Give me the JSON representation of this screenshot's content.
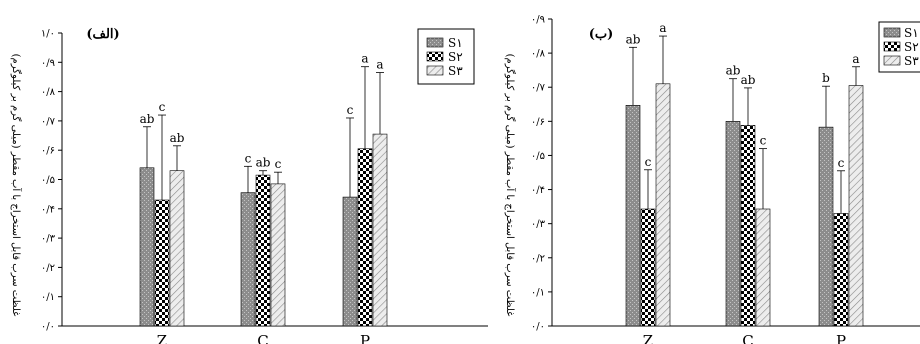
{
  "colors": {
    "s1": "#8c8c8c",
    "s2": "#000000",
    "s3": "#d8d8d8",
    "axis": "#000000"
  },
  "chart_data": [
    {
      "type": "bar",
      "panel_label": "(الف)",
      "ylabel": "غلظت سرب قابل استخراج با آب مقطر (میلی گرم بر کیلوگرم)",
      "ylim": [
        0,
        1.0
      ],
      "yticks": [
        0,
        0.1,
        0.2,
        0.3,
        0.4,
        0.5,
        0.6,
        0.7,
        0.8,
        0.9,
        1.0
      ],
      "ytick_labels": [
        "۰/۰",
        "۰/۱",
        "۰/۲",
        "۰/۳",
        "۰/۴",
        "۰/۵",
        "۰/۶",
        "۰/۷",
        "۰/۸",
        "۰/۹",
        "۱/۰"
      ],
      "categories": [
        "Z",
        "C",
        "P"
      ],
      "legend": [
        "S۱",
        "S۲",
        "S۳"
      ],
      "series": [
        {
          "name": "S۱",
          "values": [
            0.54,
            0.455,
            0.44
          ],
          "errors": [
            0.14,
            0.09,
            0.27
          ],
          "letters": [
            "ab",
            "c",
            "c"
          ]
        },
        {
          "name": "S۲",
          "values": [
            0.43,
            0.515,
            0.605
          ],
          "errors": [
            0.29,
            0.015,
            0.28
          ],
          "letters": [
            "c",
            "ab",
            "a"
          ]
        },
        {
          "name": "S۳",
          "values": [
            0.53,
            0.485,
            0.655
          ],
          "errors": [
            0.085,
            0.04,
            0.21
          ],
          "letters": [
            "ab",
            "c",
            "a"
          ]
        }
      ]
    },
    {
      "type": "bar",
      "panel_label": "(ب)",
      "ylabel": "غلظت سرب قابل استخراج با آب مقطر (میلی گرم بر کیلوگرم)",
      "ylim": [
        0,
        0.9
      ],
      "yticks": [
        0,
        0.1,
        0.2,
        0.3,
        0.4,
        0.5,
        0.6,
        0.7,
        0.8,
        0.9
      ],
      "ytick_labels": [
        "۰/۰",
        "۰/۱",
        "۰/۲",
        "۰/۳",
        "۰/۴",
        "۰/۵",
        "۰/۶",
        "۰/۷",
        "۰/۸",
        "۰/۹"
      ],
      "categories": [
        "Z",
        "C",
        "P"
      ],
      "legend": [
        "S۱",
        "S۲",
        "S۳"
      ],
      "series": [
        {
          "name": "S۱",
          "values": [
            0.647,
            0.6,
            0.583
          ],
          "errors": [
            0.17,
            0.125,
            0.12
          ],
          "letters": [
            "ab",
            "ab",
            "b"
          ]
        },
        {
          "name": "S۲",
          "values": [
            0.343,
            0.588,
            0.33
          ],
          "errors": [
            0.115,
            0.11,
            0.125
          ],
          "letters": [
            "c",
            "ab",
            "c"
          ]
        },
        {
          "name": "S۳",
          "values": [
            0.71,
            0.343,
            0.705
          ],
          "errors": [
            0.14,
            0.177,
            0.055
          ],
          "letters": [
            "a",
            "c",
            "a"
          ]
        }
      ]
    }
  ]
}
